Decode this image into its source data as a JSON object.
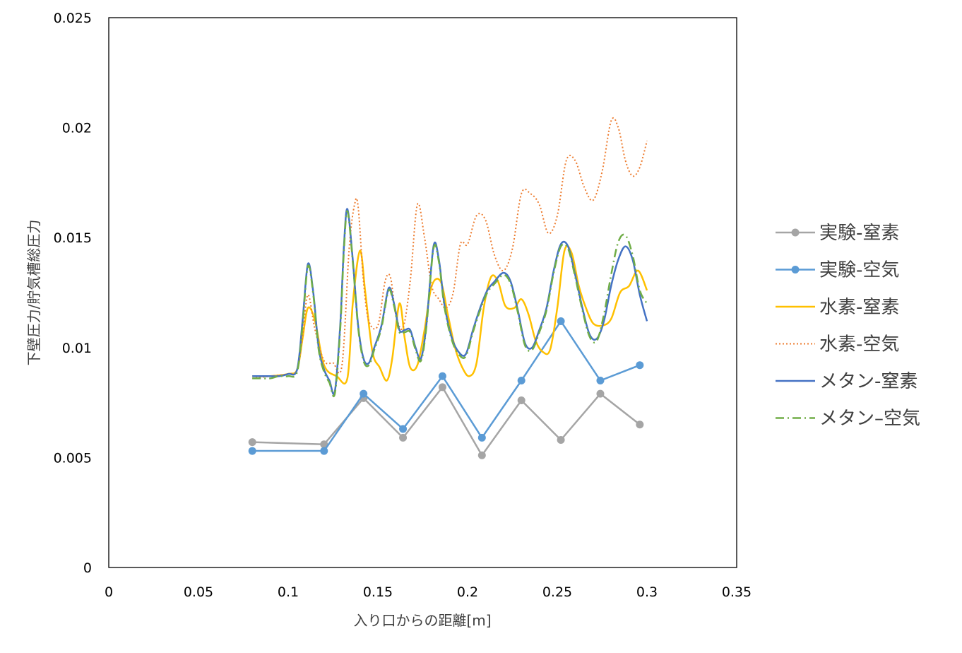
{
  "chart_data": {
    "type": "line",
    "xlabel": "入り口からの距離[m]",
    "ylabel": "下壁圧力/貯気槽総圧力",
    "xlim": [
      0,
      0.35
    ],
    "ylim": [
      0,
      0.025
    ],
    "x_ticks": [
      0,
      0.05,
      0.1,
      0.15,
      0.2,
      0.25,
      0.3,
      0.35
    ],
    "x_tick_labels": [
      "0",
      "0.05",
      "0.1",
      "0.15",
      "0.2",
      "0.25",
      "0.3",
      "0.35"
    ],
    "y_ticks": [
      0,
      0.005,
      0.01,
      0.015,
      0.02,
      0.025
    ],
    "y_tick_labels": [
      "0",
      "0.005",
      "0.01",
      "0.015",
      "0.02",
      "0.025"
    ],
    "grid": false,
    "legend_position": "right",
    "series": [
      {
        "name": "実験-窒素",
        "color": "#A5A5A5",
        "style": "solid-markers",
        "x": [
          0.08,
          0.12,
          0.142,
          0.164,
          0.186,
          0.208,
          0.23,
          0.252,
          0.274,
          0.296
        ],
        "y": [
          0.0057,
          0.0056,
          0.0077,
          0.0059,
          0.0082,
          0.0051,
          0.0076,
          0.0058,
          0.0079,
          0.0065
        ]
      },
      {
        "name": "実験-空気",
        "color": "#5B9BD5",
        "style": "solid-markers",
        "x": [
          0.08,
          0.12,
          0.142,
          0.164,
          0.186,
          0.208,
          0.23,
          0.252,
          0.274,
          0.296
        ],
        "y": [
          0.0053,
          0.0053,
          0.0079,
          0.0063,
          0.0087,
          0.0059,
          0.0085,
          0.0112,
          0.0085,
          0.0092
        ]
      },
      {
        "name": "水素-窒素",
        "color": "#FFC000",
        "style": "solid",
        "x": [
          0.08,
          0.09,
          0.1,
          0.105,
          0.108,
          0.111,
          0.115,
          0.12,
          0.127,
          0.133,
          0.136,
          0.14,
          0.143,
          0.147,
          0.151,
          0.155,
          0.158,
          0.162,
          0.165,
          0.168,
          0.172,
          0.176,
          0.18,
          0.185,
          0.189,
          0.193,
          0.197,
          0.201,
          0.205,
          0.209,
          0.213,
          0.217,
          0.221,
          0.226,
          0.23,
          0.234,
          0.238,
          0.242,
          0.246,
          0.25,
          0.254,
          0.258,
          0.262,
          0.266,
          0.27,
          0.275,
          0.28,
          0.285,
          0.29,
          0.295,
          0.3
        ],
        "y": [
          0.0087,
          0.0087,
          0.0088,
          0.009,
          0.0104,
          0.0118,
          0.0112,
          0.0092,
          0.0087,
          0.0086,
          0.012,
          0.0144,
          0.0125,
          0.0098,
          0.0091,
          0.0085,
          0.0095,
          0.012,
          0.0104,
          0.0091,
          0.0092,
          0.0108,
          0.0128,
          0.013,
          0.0115,
          0.01,
          0.0091,
          0.0087,
          0.0093,
          0.0118,
          0.0132,
          0.013,
          0.0119,
          0.0118,
          0.0122,
          0.0115,
          0.0103,
          0.0098,
          0.0099,
          0.0118,
          0.0144,
          0.0143,
          0.0128,
          0.0118,
          0.0111,
          0.011,
          0.0113,
          0.0125,
          0.0128,
          0.0135,
          0.0126
        ]
      },
      {
        "name": "水素-空気",
        "color": "#ED7D31",
        "style": "dotted",
        "x": [
          0.08,
          0.09,
          0.1,
          0.105,
          0.108,
          0.111,
          0.115,
          0.12,
          0.125,
          0.13,
          0.134,
          0.137,
          0.139,
          0.142,
          0.145,
          0.15,
          0.154,
          0.157,
          0.16,
          0.164,
          0.168,
          0.172,
          0.176,
          0.18,
          0.184,
          0.188,
          0.192,
          0.196,
          0.2,
          0.205,
          0.21,
          0.215,
          0.22,
          0.225,
          0.23,
          0.235,
          0.24,
          0.245,
          0.25,
          0.255,
          0.26,
          0.265,
          0.27,
          0.275,
          0.28,
          0.284,
          0.288,
          0.292,
          0.296,
          0.3
        ],
        "y": [
          0.0086,
          0.0087,
          0.0088,
          0.009,
          0.0105,
          0.0124,
          0.0108,
          0.0094,
          0.0093,
          0.0092,
          0.0145,
          0.0165,
          0.0164,
          0.013,
          0.0112,
          0.011,
          0.013,
          0.0132,
          0.0115,
          0.0109,
          0.013,
          0.0165,
          0.015,
          0.0128,
          0.0122,
          0.0118,
          0.0125,
          0.0147,
          0.0147,
          0.016,
          0.0158,
          0.0142,
          0.0135,
          0.0145,
          0.017,
          0.017,
          0.0165,
          0.0152,
          0.016,
          0.0185,
          0.0185,
          0.0173,
          0.0167,
          0.018,
          0.0203,
          0.02,
          0.0185,
          0.0178,
          0.0182,
          0.0194
        ]
      },
      {
        "name": "メタン-窒素",
        "color": "#4472C4",
        "style": "solid",
        "x": [
          0.08,
          0.085,
          0.09,
          0.095,
          0.1,
          0.105,
          0.108,
          0.111,
          0.114,
          0.117,
          0.12,
          0.123,
          0.126,
          0.129,
          0.131,
          0.133,
          0.136,
          0.139,
          0.142,
          0.145,
          0.148,
          0.152,
          0.156,
          0.159,
          0.162,
          0.165,
          0.168,
          0.171,
          0.174,
          0.177,
          0.181,
          0.184,
          0.187,
          0.191,
          0.195,
          0.199,
          0.203,
          0.207,
          0.211,
          0.215,
          0.22,
          0.224,
          0.228,
          0.232,
          0.236,
          0.24,
          0.244,
          0.248,
          0.252,
          0.256,
          0.26,
          0.264,
          0.268,
          0.272,
          0.276,
          0.28,
          0.284,
          0.288,
          0.292,
          0.296,
          0.3
        ],
        "y": [
          0.0087,
          0.0087,
          0.0087,
          0.0087,
          0.0088,
          0.009,
          0.0112,
          0.0138,
          0.0125,
          0.01,
          0.009,
          0.0085,
          0.008,
          0.011,
          0.0145,
          0.0163,
          0.014,
          0.011,
          0.0095,
          0.0093,
          0.01,
          0.011,
          0.0127,
          0.012,
          0.0108,
          0.0108,
          0.0108,
          0.01,
          0.0095,
          0.011,
          0.0146,
          0.014,
          0.012,
          0.0105,
          0.0098,
          0.0097,
          0.0108,
          0.0118,
          0.0126,
          0.013,
          0.0134,
          0.013,
          0.0117,
          0.0102,
          0.01,
          0.0108,
          0.0118,
          0.0135,
          0.0147,
          0.0146,
          0.0133,
          0.0118,
          0.0106,
          0.0104,
          0.0112,
          0.0128,
          0.014,
          0.0146,
          0.014,
          0.0124,
          0.0112
        ]
      },
      {
        "name": "メタン–空気",
        "color": "#70AD47",
        "style": "dashdot",
        "x": [
          0.08,
          0.085,
          0.09,
          0.095,
          0.1,
          0.105,
          0.108,
          0.111,
          0.114,
          0.117,
          0.12,
          0.123,
          0.126,
          0.129,
          0.131,
          0.133,
          0.136,
          0.139,
          0.142,
          0.145,
          0.148,
          0.152,
          0.156,
          0.159,
          0.162,
          0.165,
          0.168,
          0.171,
          0.174,
          0.177,
          0.181,
          0.184,
          0.187,
          0.191,
          0.195,
          0.199,
          0.203,
          0.207,
          0.211,
          0.215,
          0.22,
          0.224,
          0.228,
          0.232,
          0.236,
          0.24,
          0.244,
          0.248,
          0.252,
          0.256,
          0.26,
          0.264,
          0.268,
          0.272,
          0.276,
          0.28,
          0.284,
          0.288,
          0.292,
          0.296,
          0.3
        ],
        "y": [
          0.0086,
          0.0086,
          0.0086,
          0.0087,
          0.0087,
          0.0089,
          0.011,
          0.0137,
          0.0124,
          0.0099,
          0.0089,
          0.0084,
          0.0079,
          0.0108,
          0.0143,
          0.0162,
          0.0139,
          0.0109,
          0.0094,
          0.0092,
          0.0099,
          0.0109,
          0.0126,
          0.0119,
          0.0107,
          0.0107,
          0.0107,
          0.0099,
          0.0094,
          0.0109,
          0.0145,
          0.0139,
          0.0119,
          0.0104,
          0.0097,
          0.0096,
          0.0107,
          0.0117,
          0.0125,
          0.0129,
          0.0133,
          0.0129,
          0.0116,
          0.0101,
          0.0099,
          0.0107,
          0.0117,
          0.0134,
          0.0146,
          0.0145,
          0.0132,
          0.0117,
          0.0105,
          0.0103,
          0.0115,
          0.0133,
          0.0148,
          0.0151,
          0.0142,
          0.0126,
          0.012
        ]
      }
    ]
  }
}
